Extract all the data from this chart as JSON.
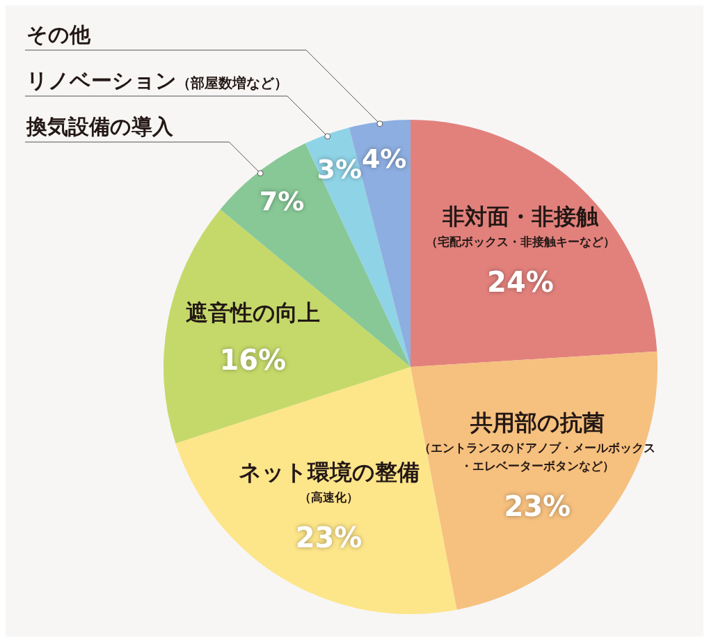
{
  "chart_data": {
    "type": "pie",
    "categories": [
      "非対面・非接触（宅配ボックス・非接触キーなど）",
      "共用部の抗菌（エントランスのドアノブ・メールボックス・エレベーターボタンなど）",
      "ネット環境の整備（高速化）",
      "遮音性の向上",
      "換気設備の導入",
      "リノベーション（部屋数増など）",
      "その他"
    ],
    "values": [
      24,
      23,
      23,
      16,
      7,
      3,
      4
    ],
    "value_labels": [
      "24%",
      "23%",
      "23%",
      "16%",
      "7%",
      "3%",
      "4%"
    ],
    "colors": [
      "#e2817c",
      "#f6c07e",
      "#fde58a",
      "#c5d96a",
      "#88c896",
      "#8fd3e6",
      "#8daee0"
    ]
  }
}
